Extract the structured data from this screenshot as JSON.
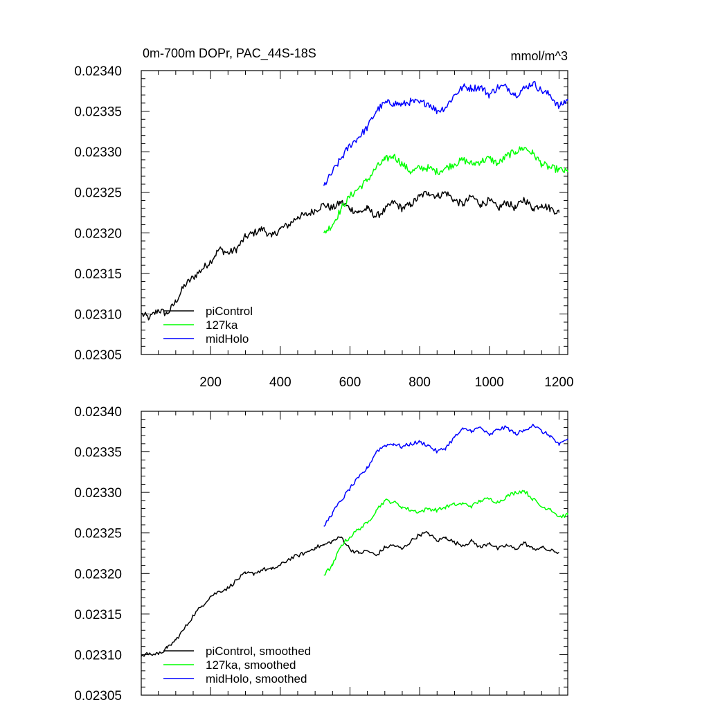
{
  "chart_data": [
    {
      "type": "line",
      "panel": "top",
      "title": "0m-700m DOPr, PAC_44S-18S",
      "units": "mmol/m^3",
      "xlabel": "",
      "ylabel": "",
      "xlim": [
        1,
        1225
      ],
      "ylim": [
        0.02305,
        0.0234
      ],
      "xticks": [
        200,
        400,
        600,
        800,
        1000,
        1200
      ],
      "xtick_labels": [
        "200",
        "400",
        "600",
        "800",
        "1000",
        "1200"
      ],
      "show_xtick_labels": true,
      "yticks": [
        0.02305,
        0.0231,
        0.02315,
        0.0232,
        0.02325,
        0.0233,
        0.02335,
        0.0234
      ],
      "ytick_labels": [
        "0.02305",
        "0.02310",
        "0.02315",
        "0.02320",
        "0.02325",
        "0.02330",
        "0.02335",
        "0.02340"
      ],
      "legend_location": "lower-left",
      "series": [
        {
          "name": "piControl",
          "color": "#000000",
          "x": [
            1,
            25,
            50,
            75,
            100,
            125,
            150,
            175,
            200,
            225,
            250,
            275,
            300,
            325,
            350,
            375,
            400,
            425,
            450,
            475,
            500,
            525,
            550,
            575,
            600,
            625,
            650,
            675,
            700,
            725,
            750,
            775,
            800,
            825,
            850,
            875,
            900,
            925,
            950,
            975,
            1000,
            1025,
            1050,
            1075,
            1100,
            1125,
            1150,
            1175,
            1200
          ],
          "values": [
            0.0231,
            0.023095,
            0.023105,
            0.0231,
            0.023115,
            0.023135,
            0.023145,
            0.023155,
            0.023165,
            0.02318,
            0.023175,
            0.02318,
            0.023195,
            0.0232,
            0.023205,
            0.023195,
            0.023205,
            0.02321,
            0.02322,
            0.023222,
            0.023228,
            0.023235,
            0.02323,
            0.023238,
            0.02323,
            0.023225,
            0.02323,
            0.02322,
            0.023228,
            0.023238,
            0.02323,
            0.023235,
            0.023245,
            0.02325,
            0.023245,
            0.02325,
            0.02324,
            0.023235,
            0.023245,
            0.023235,
            0.02324,
            0.02323,
            0.023238,
            0.02323,
            0.023242,
            0.02323,
            0.023235,
            0.02323,
            0.023225
          ]
        },
        {
          "name": "127ka",
          "color": "#00ff00",
          "x": [
            525,
            550,
            575,
            600,
            625,
            650,
            675,
            700,
            725,
            750,
            775,
            800,
            825,
            850,
            875,
            900,
            925,
            950,
            975,
            1000,
            1025,
            1050,
            1075,
            1100,
            1125,
            1150,
            1175,
            1200,
            1225
          ],
          "values": [
            0.0232,
            0.02321,
            0.02323,
            0.023245,
            0.023255,
            0.023265,
            0.02328,
            0.02329,
            0.023295,
            0.023285,
            0.023275,
            0.02328,
            0.02328,
            0.023275,
            0.02328,
            0.023285,
            0.02329,
            0.023285,
            0.023288,
            0.023292,
            0.023285,
            0.023295,
            0.0233,
            0.023305,
            0.023298,
            0.023285,
            0.02328,
            0.023278,
            0.023275
          ]
        },
        {
          "name": "midHolo",
          "color": "#0000ff",
          "x": [
            525,
            550,
            575,
            600,
            625,
            650,
            675,
            700,
            725,
            750,
            775,
            800,
            825,
            850,
            875,
            900,
            925,
            950,
            975,
            1000,
            1025,
            1050,
            1075,
            1100,
            1125,
            1150,
            1175,
            1200,
            1225
          ],
          "values": [
            0.023258,
            0.023275,
            0.023292,
            0.023308,
            0.023318,
            0.02333,
            0.02335,
            0.02336,
            0.02336,
            0.023358,
            0.023362,
            0.02336,
            0.02336,
            0.02335,
            0.023355,
            0.02337,
            0.02338,
            0.023378,
            0.02338,
            0.02337,
            0.02338,
            0.02338,
            0.02337,
            0.023378,
            0.023385,
            0.023375,
            0.02337,
            0.023355,
            0.023365
          ]
        }
      ]
    },
    {
      "type": "line",
      "panel": "bottom",
      "title": "",
      "units": "",
      "xlabel": "",
      "ylabel": "",
      "xlim": [
        1,
        1225
      ],
      "ylim": [
        0.02305,
        0.0234
      ],
      "xticks": [
        200,
        400,
        600,
        800,
        1000,
        1200
      ],
      "xtick_labels": [],
      "show_xtick_labels": false,
      "yticks": [
        0.02305,
        0.0231,
        0.02315,
        0.0232,
        0.02325,
        0.0233,
        0.02335,
        0.0234
      ],
      "ytick_labels": [
        "0.02305",
        "0.02310",
        "0.02315",
        "0.02320",
        "0.02325",
        "0.02330",
        "0.02335",
        "0.02340"
      ],
      "legend_location": "lower-left",
      "series": [
        {
          "name": "piControl, smoothed",
          "color": "#000000",
          "x": [
            1,
            25,
            50,
            75,
            100,
            125,
            150,
            175,
            200,
            225,
            250,
            275,
            300,
            325,
            350,
            375,
            400,
            425,
            450,
            475,
            500,
            525,
            550,
            575,
            600,
            625,
            650,
            675,
            700,
            725,
            750,
            775,
            800,
            825,
            850,
            875,
            900,
            925,
            950,
            975,
            1000,
            1025,
            1050,
            1075,
            1100,
            1125,
            1150,
            1175,
            1200
          ],
          "values": [
            0.023098,
            0.023102,
            0.0231,
            0.023108,
            0.023118,
            0.023132,
            0.023148,
            0.02316,
            0.023172,
            0.023178,
            0.023182,
            0.023192,
            0.0232,
            0.0232,
            0.023205,
            0.023205,
            0.02321,
            0.023218,
            0.023222,
            0.023226,
            0.023232,
            0.023235,
            0.02324,
            0.023245,
            0.02323,
            0.023225,
            0.023228,
            0.023222,
            0.023232,
            0.023235,
            0.02323,
            0.02324,
            0.023248,
            0.02325,
            0.02324,
            0.023245,
            0.023238,
            0.023235,
            0.02324,
            0.023232,
            0.023238,
            0.02323,
            0.023235,
            0.02323,
            0.023238,
            0.02323,
            0.023232,
            0.023228,
            0.023226
          ]
        },
        {
          "name": "127ka, smoothed",
          "color": "#00ff00",
          "x": [
            525,
            550,
            575,
            600,
            625,
            650,
            675,
            700,
            725,
            750,
            775,
            800,
            825,
            850,
            875,
            900,
            925,
            950,
            975,
            1000,
            1025,
            1050,
            1075,
            1100,
            1125,
            1150,
            1175,
            1200,
            1225
          ],
          "values": [
            0.023198,
            0.02321,
            0.023235,
            0.023245,
            0.023255,
            0.023262,
            0.023278,
            0.02329,
            0.023288,
            0.023282,
            0.023278,
            0.023276,
            0.02328,
            0.023278,
            0.023282,
            0.023285,
            0.023286,
            0.023283,
            0.02329,
            0.023292,
            0.023288,
            0.023295,
            0.0233,
            0.023302,
            0.023292,
            0.023282,
            0.02328,
            0.02327,
            0.023272
          ]
        },
        {
          "name": "midHolo, smoothed",
          "color": "#0000ff",
          "x": [
            525,
            550,
            575,
            600,
            625,
            650,
            675,
            700,
            725,
            750,
            775,
            800,
            825,
            850,
            875,
            900,
            925,
            950,
            975,
            1000,
            1025,
            1050,
            1075,
            1100,
            1125,
            1150,
            1175,
            1200,
            1225
          ],
          "values": [
            0.023258,
            0.023275,
            0.02329,
            0.023305,
            0.023318,
            0.02333,
            0.02335,
            0.023358,
            0.02336,
            0.023356,
            0.02336,
            0.023362,
            0.023358,
            0.02335,
            0.023355,
            0.023368,
            0.023378,
            0.023376,
            0.02338,
            0.02337,
            0.023378,
            0.02338,
            0.023372,
            0.023376,
            0.023384,
            0.023375,
            0.02337,
            0.023358,
            0.023366
          ]
        }
      ]
    }
  ]
}
